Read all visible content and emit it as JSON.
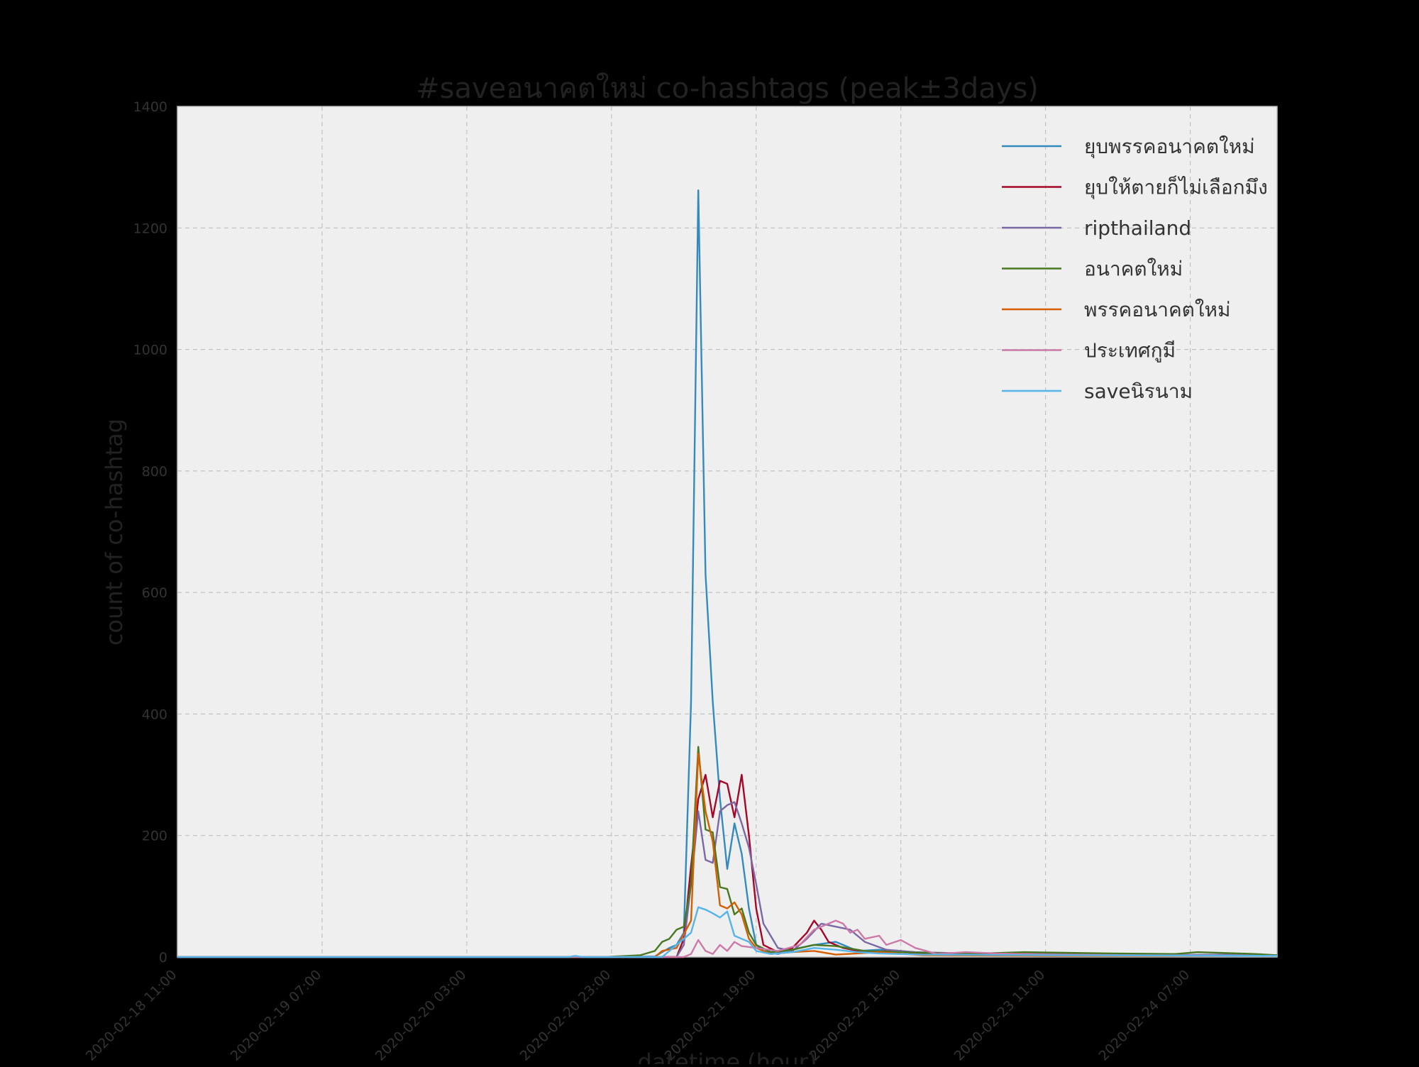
{
  "chart_data": {
    "type": "line",
    "title": "#saveอนาคตใหม่ co-hashtags (peak±3days)",
    "xlabel": "datetime (hour)",
    "ylabel": "count of co-hashtag",
    "x_start": "2020-02-18 11:00",
    "x_end": "2020-02-24 19:00",
    "ylim": [
      0,
      1400
    ],
    "y_ticks": [
      0,
      200,
      400,
      600,
      800,
      1000,
      1200,
      1400
    ],
    "x_ticks": [
      "2020-02-18 11:00",
      "2020-02-19 07:00",
      "2020-02-20 03:00",
      "2020-02-20 23:00",
      "2020-02-21 19:00",
      "2020-02-22 15:00",
      "2020-02-23 11:00",
      "2020-02-24 07:00"
    ],
    "grid": true,
    "legend_position": "top-right",
    "background": "#efefef",
    "series": [
      {
        "name": "ยุบพรรคอนาคตใหม่",
        "color": "#348abd",
        "points": [
          [
            "2020-02-18 11:00",
            0
          ],
          [
            "2020-02-20 22:00",
            0
          ],
          [
            "2020-02-21 05:00",
            1
          ],
          [
            "2020-02-21 07:00",
            15
          ],
          [
            "2020-02-21 08:00",
            20
          ],
          [
            "2020-02-21 09:00",
            40
          ],
          [
            "2020-02-21 10:00",
            420
          ],
          [
            "2020-02-21 11:00",
            1262
          ],
          [
            "2020-02-21 12:00",
            630
          ],
          [
            "2020-02-21 13:00",
            420
          ],
          [
            "2020-02-21 14:00",
            260
          ],
          [
            "2020-02-21 15:00",
            145
          ],
          [
            "2020-02-21 16:00",
            220
          ],
          [
            "2020-02-21 17:00",
            170
          ],
          [
            "2020-02-21 18:00",
            80
          ],
          [
            "2020-02-21 19:00",
            20
          ],
          [
            "2020-02-21 20:00",
            10
          ],
          [
            "2020-02-21 22:00",
            5
          ],
          [
            "2020-02-22 01:00",
            15
          ],
          [
            "2020-02-22 03:00",
            20
          ],
          [
            "2020-02-22 06:00",
            25
          ],
          [
            "2020-02-22 09:00",
            10
          ],
          [
            "2020-02-22 12:00",
            12
          ],
          [
            "2020-02-22 15:00",
            10
          ],
          [
            "2020-02-22 18:00",
            6
          ],
          [
            "2020-02-23 00:00",
            5
          ],
          [
            "2020-02-23 12:00",
            4
          ],
          [
            "2020-02-24 00:00",
            3
          ],
          [
            "2020-02-24 12:00",
            3
          ],
          [
            "2020-02-24 19:00",
            3
          ]
        ]
      },
      {
        "name": "ยุบให้ตายก็ไม่เลือกมึง",
        "color": "#a60628",
        "points": [
          [
            "2020-02-18 11:00",
            0
          ],
          [
            "2020-02-21 08:00",
            0
          ],
          [
            "2020-02-21 09:00",
            30
          ],
          [
            "2020-02-21 10:00",
            150
          ],
          [
            "2020-02-21 11:00",
            260
          ],
          [
            "2020-02-21 12:00",
            300
          ],
          [
            "2020-02-21 13:00",
            230
          ],
          [
            "2020-02-21 14:00",
            290
          ],
          [
            "2020-02-21 15:00",
            285
          ],
          [
            "2020-02-21 16:00",
            230
          ],
          [
            "2020-02-21 17:00",
            300
          ],
          [
            "2020-02-21 18:00",
            200
          ],
          [
            "2020-02-21 19:00",
            80
          ],
          [
            "2020-02-21 20:00",
            20
          ],
          [
            "2020-02-21 22:00",
            8
          ],
          [
            "2020-02-22 00:00",
            15
          ],
          [
            "2020-02-22 02:00",
            40
          ],
          [
            "2020-02-22 03:00",
            60
          ],
          [
            "2020-02-22 04:00",
            45
          ],
          [
            "2020-02-22 05:00",
            25
          ],
          [
            "2020-02-22 07:00",
            15
          ],
          [
            "2020-02-22 10:00",
            8
          ],
          [
            "2020-02-22 14:00",
            10
          ],
          [
            "2020-02-22 18:00",
            5
          ],
          [
            "2020-02-23 06:00",
            3
          ],
          [
            "2020-02-24 19:00",
            2
          ]
        ]
      },
      {
        "name": "ripthailand",
        "color": "#7a68a6",
        "points": [
          [
            "2020-02-18 11:00",
            0
          ],
          [
            "2020-02-21 08:00",
            0
          ],
          [
            "2020-02-21 09:00",
            20
          ],
          [
            "2020-02-21 10:00",
            120
          ],
          [
            "2020-02-21 11:00",
            240
          ],
          [
            "2020-02-21 12:00",
            160
          ],
          [
            "2020-02-21 13:00",
            155
          ],
          [
            "2020-02-21 14:00",
            240
          ],
          [
            "2020-02-21 15:00",
            250
          ],
          [
            "2020-02-21 16:00",
            255
          ],
          [
            "2020-02-21 17:00",
            220
          ],
          [
            "2020-02-21 18:00",
            180
          ],
          [
            "2020-02-21 19:00",
            120
          ],
          [
            "2020-02-21 20:00",
            55
          ],
          [
            "2020-02-21 21:00",
            35
          ],
          [
            "2020-02-21 22:00",
            15
          ],
          [
            "2020-02-22 00:00",
            10
          ],
          [
            "2020-02-22 02:00",
            30
          ],
          [
            "2020-02-22 04:00",
            55
          ],
          [
            "2020-02-22 06:00",
            50
          ],
          [
            "2020-02-22 08:00",
            45
          ],
          [
            "2020-02-22 10:00",
            25
          ],
          [
            "2020-02-22 13:00",
            12
          ],
          [
            "2020-02-22 17:00",
            8
          ],
          [
            "2020-02-23 00:00",
            6
          ],
          [
            "2020-02-23 12:00",
            5
          ],
          [
            "2020-02-24 00:00",
            3
          ],
          [
            "2020-02-24 12:00",
            4
          ],
          [
            "2020-02-24 19:00",
            3
          ]
        ]
      },
      {
        "name": "อนาคตใหม่",
        "color": "#467821",
        "points": [
          [
            "2020-02-18 11:00",
            0
          ],
          [
            "2020-02-20 22:00",
            0
          ],
          [
            "2020-02-21 03:00",
            3
          ],
          [
            "2020-02-21 05:00",
            10
          ],
          [
            "2020-02-21 06:00",
            25
          ],
          [
            "2020-02-21 07:00",
            30
          ],
          [
            "2020-02-21 08:00",
            45
          ],
          [
            "2020-02-21 09:00",
            50
          ],
          [
            "2020-02-21 10:00",
            120
          ],
          [
            "2020-02-21 11:00",
            346
          ],
          [
            "2020-02-21 12:00",
            210
          ],
          [
            "2020-02-21 13:00",
            205
          ],
          [
            "2020-02-21 14:00",
            115
          ],
          [
            "2020-02-21 15:00",
            112
          ],
          [
            "2020-02-21 16:00",
            70
          ],
          [
            "2020-02-21 17:00",
            80
          ],
          [
            "2020-02-21 18:00",
            40
          ],
          [
            "2020-02-21 19:00",
            20
          ],
          [
            "2020-02-21 21:00",
            8
          ],
          [
            "2020-02-22 00:00",
            12
          ],
          [
            "2020-02-22 03:00",
            20
          ],
          [
            "2020-02-22 06:00",
            18
          ],
          [
            "2020-02-22 10:00",
            10
          ],
          [
            "2020-02-22 15:00",
            8
          ],
          [
            "2020-02-23 00:00",
            5
          ],
          [
            "2020-02-23 08:00",
            8
          ],
          [
            "2020-02-23 20:00",
            6
          ],
          [
            "2020-02-24 05:00",
            5
          ],
          [
            "2020-02-24 08:00",
            8
          ],
          [
            "2020-02-24 16:00",
            5
          ],
          [
            "2020-02-24 19:00",
            3
          ]
        ]
      },
      {
        "name": "พรรคอนาคตใหม่",
        "color": "#d55e00",
        "points": [
          [
            "2020-02-18 11:00",
            0
          ],
          [
            "2020-02-21 05:00",
            0
          ],
          [
            "2020-02-21 06:00",
            10
          ],
          [
            "2020-02-21 08:00",
            15
          ],
          [
            "2020-02-21 10:00",
            60
          ],
          [
            "2020-02-21 11:00",
            335
          ],
          [
            "2020-02-21 12:00",
            240
          ],
          [
            "2020-02-21 13:00",
            190
          ],
          [
            "2020-02-21 14:00",
            85
          ],
          [
            "2020-02-21 15:00",
            80
          ],
          [
            "2020-02-21 16:00",
            90
          ],
          [
            "2020-02-21 17:00",
            70
          ],
          [
            "2020-02-21 18:00",
            30
          ],
          [
            "2020-02-21 19:00",
            15
          ],
          [
            "2020-02-21 21:00",
            5
          ],
          [
            "2020-02-22 00:00",
            8
          ],
          [
            "2020-02-22 03:00",
            10
          ],
          [
            "2020-02-22 06:00",
            4
          ],
          [
            "2020-02-22 09:00",
            6
          ],
          [
            "2020-02-22 12:00",
            8
          ],
          [
            "2020-02-22 18:00",
            3
          ],
          [
            "2020-02-23 12:00",
            2
          ],
          [
            "2020-02-24 19:00",
            2
          ]
        ]
      },
      {
        "name": "ประเทศกูมี",
        "color": "#cc79a7",
        "points": [
          [
            "2020-02-18 11:00",
            0
          ],
          [
            "2020-02-21 09:00",
            0
          ],
          [
            "2020-02-21 10:00",
            5
          ],
          [
            "2020-02-21 11:00",
            28
          ],
          [
            "2020-02-21 12:00",
            10
          ],
          [
            "2020-02-21 13:00",
            5
          ],
          [
            "2020-02-21 14:00",
            20
          ],
          [
            "2020-02-21 15:00",
            10
          ],
          [
            "2020-02-21 16:00",
            25
          ],
          [
            "2020-02-21 17:00",
            18
          ],
          [
            "2020-02-21 19:00",
            15
          ],
          [
            "2020-02-21 22:00",
            10
          ],
          [
            "2020-02-22 01:00",
            20
          ],
          [
            "2020-02-22 03:00",
            45
          ],
          [
            "2020-02-22 05:00",
            55
          ],
          [
            "2020-02-22 06:00",
            60
          ],
          [
            "2020-02-22 07:00",
            55
          ],
          [
            "2020-02-22 08:00",
            40
          ],
          [
            "2020-02-22 09:00",
            45
          ],
          [
            "2020-02-22 10:00",
            30
          ],
          [
            "2020-02-22 12:00",
            35
          ],
          [
            "2020-02-22 13:00",
            20
          ],
          [
            "2020-02-22 15:00",
            28
          ],
          [
            "2020-02-22 17:00",
            15
          ],
          [
            "2020-02-22 20:00",
            5
          ],
          [
            "2020-02-23 00:00",
            8
          ],
          [
            "2020-02-23 04:00",
            6
          ],
          [
            "2020-02-23 12:00",
            4
          ],
          [
            "2020-02-24 00:00",
            3
          ],
          [
            "2020-02-24 19:00",
            2
          ]
        ]
      },
      {
        "name": "saveนิรนาม",
        "color": "#56b4e9",
        "points": [
          [
            "2020-02-18 11:00",
            0
          ],
          [
            "2020-02-20 17:00",
            0
          ],
          [
            "2020-02-20 18:00",
            2
          ],
          [
            "2020-02-20 19:00",
            0
          ],
          [
            "2020-02-21 06:00",
            0
          ],
          [
            "2020-02-21 08:00",
            20
          ],
          [
            "2020-02-21 10:00",
            40
          ],
          [
            "2020-02-21 11:00",
            82
          ],
          [
            "2020-02-21 12:00",
            78
          ],
          [
            "2020-02-21 13:00",
            72
          ],
          [
            "2020-02-21 14:00",
            65
          ],
          [
            "2020-02-21 15:00",
            75
          ],
          [
            "2020-02-21 16:00",
            35
          ],
          [
            "2020-02-21 17:00",
            30
          ],
          [
            "2020-02-21 18:00",
            25
          ],
          [
            "2020-02-21 19:00",
            10
          ],
          [
            "2020-02-21 21:00",
            5
          ],
          [
            "2020-02-22 00:00",
            8
          ],
          [
            "2020-02-22 03:00",
            15
          ],
          [
            "2020-02-22 06:00",
            12
          ],
          [
            "2020-02-22 09:00",
            8
          ],
          [
            "2020-02-22 12:00",
            6
          ],
          [
            "2020-02-22 18:00",
            4
          ],
          [
            "2020-02-23 12:00",
            3
          ],
          [
            "2020-02-24 19:00",
            2
          ]
        ]
      }
    ]
  }
}
